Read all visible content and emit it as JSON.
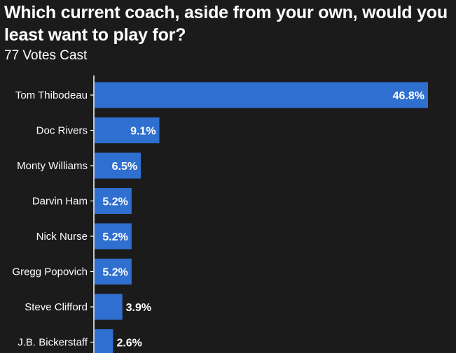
{
  "title": "Which current coach, aside from your own, would you least want to play for?",
  "subtitle": "77 Votes Cast",
  "colors": {
    "background": "#1b1b1b",
    "bar": "#2f6fcf",
    "text": "#ffffff",
    "axis": "#ffffff"
  },
  "chart_data": {
    "type": "bar",
    "orientation": "horizontal",
    "categories": [
      "Tom Thibodeau",
      "Doc Rivers",
      "Monty Williams",
      "Darvin Ham",
      "Nick Nurse",
      "Gregg Popovich",
      "Steve Clifford",
      "J.B. Bickerstaff"
    ],
    "values": [
      46.8,
      9.1,
      6.5,
      5.2,
      5.2,
      5.2,
      3.9,
      2.6
    ],
    "value_labels": [
      "46.8%",
      "9.1%",
      "6.5%",
      "5.2%",
      "5.2%",
      "5.2%",
      "3.9%",
      "2.6%"
    ],
    "unit": "%",
    "xlim": [
      0,
      46.8
    ],
    "grid": false,
    "legend": "none"
  }
}
